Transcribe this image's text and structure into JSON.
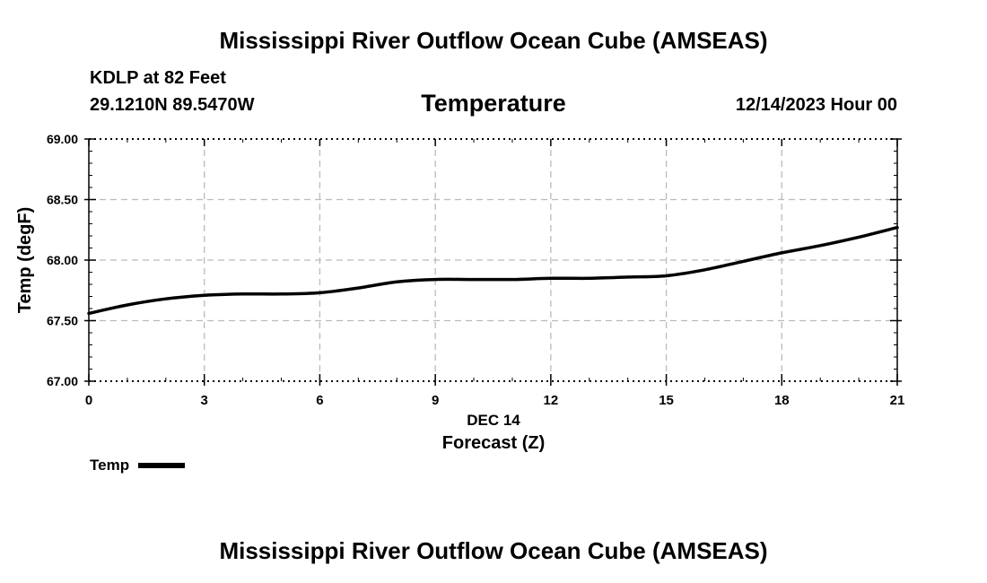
{
  "header": {
    "title": "Mississippi River Outflow Ocean Cube (AMSEAS)",
    "station": "KDLP at 82 Feet",
    "coords": "29.1210N  89.5470W",
    "variable": "Temperature",
    "datetime": "12/14/2023 Hour 00"
  },
  "footer": {
    "title": "Mississippi River Outflow Ocean Cube (AMSEAS)"
  },
  "chart_data": {
    "type": "line",
    "title": "Temperature",
    "xlabel": "Forecast (Z)",
    "x_date_label": "DEC 14",
    "ylabel": "Temp (degF)",
    "xlim": [
      0,
      21
    ],
    "ylim": [
      67.0,
      69.0
    ],
    "x_ticks": [
      0,
      3,
      6,
      9,
      12,
      15,
      18,
      21
    ],
    "x_tick_labels": [
      "0",
      "3",
      "6",
      "9",
      "12",
      "15",
      "18",
      "21"
    ],
    "y_ticks": [
      67.0,
      67.5,
      68.0,
      68.5,
      69.0
    ],
    "y_tick_labels": [
      "67.00",
      "67.50",
      "68.00",
      "68.50",
      "69.00"
    ],
    "grid": true,
    "legend": "bottom-left",
    "series": [
      {
        "name": "Temp",
        "color": "#000000",
        "x": [
          0,
          1,
          2,
          3,
          4,
          5,
          6,
          7,
          8,
          9,
          10,
          11,
          12,
          13,
          14,
          15,
          16,
          17,
          18,
          19,
          20,
          21
        ],
        "values": [
          67.56,
          67.63,
          67.68,
          67.71,
          67.72,
          67.72,
          67.73,
          67.77,
          67.82,
          67.84,
          67.84,
          67.84,
          67.85,
          67.85,
          67.86,
          67.87,
          67.92,
          67.99,
          68.06,
          68.12,
          68.19,
          68.27
        ]
      }
    ]
  }
}
